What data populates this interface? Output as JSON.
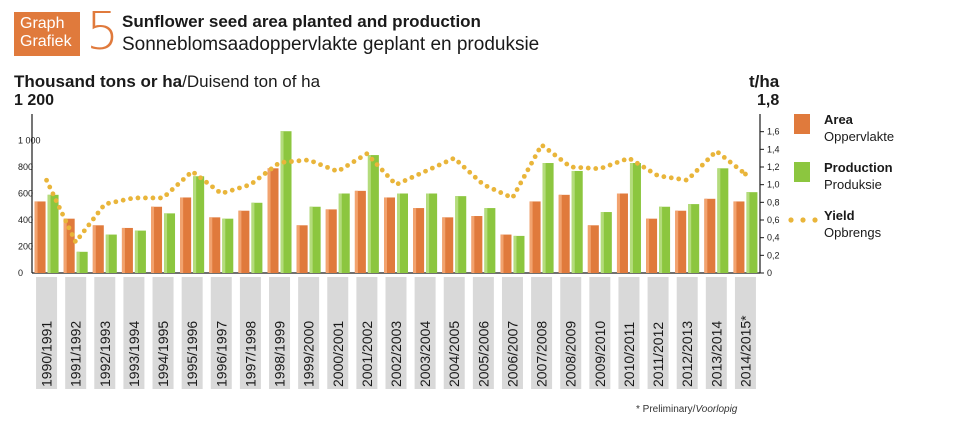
{
  "header": {
    "badge_line1": "Graph",
    "badge_line2": "Grafiek",
    "figure_number": "5",
    "title_en": "Sunflower seed area planted and production",
    "title_af": "Sonneblomsaadoppervlakte geplant en produksie"
  },
  "axes": {
    "left_title_bold": "Thousand tons or ha",
    "left_title_rest": "/Duisend ton of ha",
    "left_max_label": "1 200",
    "right_title": "t/ha",
    "right_max_label": "1,8"
  },
  "legend": {
    "area_en": "Area",
    "area_af": "Oppervlakte",
    "production_en": "Production",
    "production_af": "Produksie",
    "yield_en": "Yield",
    "yield_af": "Opbrengs"
  },
  "footnote": {
    "text": "* Preliminary/",
    "italic": "Voorlopig"
  },
  "colors": {
    "area": "#e07a3c",
    "production": "#8cc63f",
    "yield": "#e9b53a",
    "label_band": "#d9d9d9"
  },
  "chart_data": {
    "type": "bar",
    "categories": [
      "1990/1991",
      "1991/1992",
      "1992/1993",
      "1993/1994",
      "1994/1995",
      "1995/1996",
      "1996/1997",
      "1997/1998",
      "1998/1999",
      "1999/2000",
      "2000/2001",
      "2001/2002",
      "2002/2003",
      "2003/2004",
      "2004/2005",
      "2005/2006",
      "2006/2007",
      "2007/2008",
      "2008/2009",
      "2009/2010",
      "2010/2011",
      "2011/2012",
      "2012/2013",
      "2013/2014",
      "2014/2015*"
    ],
    "series": [
      {
        "name": "Area",
        "axis": "left",
        "kind": "bar",
        "values": [
          540,
          410,
          360,
          340,
          500,
          570,
          420,
          470,
          790,
          360,
          480,
          620,
          570,
          490,
          420,
          430,
          290,
          540,
          590,
          360,
          600,
          410,
          470,
          560,
          540
        ]
      },
      {
        "name": "Production",
        "axis": "left",
        "kind": "bar",
        "values": [
          590,
          160,
          290,
          320,
          450,
          730,
          410,
          530,
          1070,
          500,
          600,
          890,
          600,
          600,
          580,
          490,
          280,
          830,
          770,
          460,
          830,
          500,
          520,
          790,
          610
        ]
      },
      {
        "name": "Yield",
        "axis": "right",
        "kind": "dotted-line",
        "values": [
          1.05,
          0.35,
          0.78,
          0.85,
          0.85,
          1.15,
          0.9,
          1.0,
          1.25,
          1.28,
          1.15,
          1.35,
          1.0,
          1.15,
          1.3,
          1.0,
          0.85,
          1.45,
          1.2,
          1.18,
          1.3,
          1.1,
          1.05,
          1.38,
          1.12
        ]
      }
    ],
    "y_left": {
      "ylim": [
        0,
        1200
      ],
      "ticks": [
        "0",
        "200",
        "400",
        "600",
        "800",
        "1 000"
      ],
      "tick_values": [
        0,
        200,
        400,
        600,
        800,
        1000
      ]
    },
    "y_right": {
      "ylim": [
        0,
        1.8
      ],
      "ticks": [
        "0",
        "0,2",
        "0,4",
        "0,6",
        "0,8",
        "1,0",
        "1,2",
        "1,4",
        "1,6"
      ],
      "tick_values": [
        0,
        0.2,
        0.4,
        0.6,
        0.8,
        1.0,
        1.2,
        1.4,
        1.6
      ]
    },
    "grid": false,
    "legend_position": "right"
  }
}
